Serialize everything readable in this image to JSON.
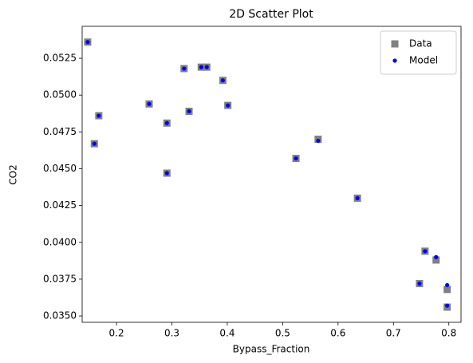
{
  "chart_data": {
    "type": "scatter",
    "title": "2D Scatter Plot",
    "x_label": "Bypass_Fraction",
    "y_label": "CO2",
    "xlim": [
      0.138,
      0.822
    ],
    "ylim": [
      0.03457,
      0.05467
    ],
    "xticks": [
      0.2,
      0.3,
      0.4,
      0.5,
      0.6,
      0.7,
      0.8
    ],
    "yticks": [
      {
        "value": 0.035,
        "label": "0.0350"
      },
      0.0375,
      {
        "value": 0.04,
        "label": "0.0400"
      },
      0.0425,
      {
        "value": 0.045,
        "label": "0.0450"
      },
      0.0475,
      {
        "value": 0.05,
        "label": "0.0500"
      },
      0.0525
    ],
    "legend": "upper right",
    "series": [
      {
        "name": "Data",
        "color": "#808080",
        "marker": "square",
        "x": [
          0.148,
          0.168,
          0.16,
          0.259,
          0.291,
          0.291,
          0.322,
          0.331,
          0.353,
          0.363,
          0.392,
          0.401,
          0.564,
          0.524,
          0.635,
          0.757,
          0.777,
          0.747,
          0.797,
          0.797
        ],
        "y": [
          0.0536,
          0.0486,
          0.0467,
          0.0494,
          0.0481,
          0.0447,
          0.0518,
          0.0489,
          0.0519,
          0.0519,
          0.051,
          0.0493,
          0.047,
          0.0457,
          0.043,
          0.0394,
          0.0388,
          0.0372,
          0.0368,
          0.0356
        ]
      },
      {
        "name": "Model",
        "color": "#0000ff",
        "marker": "circle",
        "x": [
          0.148,
          0.168,
          0.16,
          0.259,
          0.291,
          0.291,
          0.322,
          0.331,
          0.353,
          0.363,
          0.392,
          0.401,
          0.564,
          0.524,
          0.635,
          0.757,
          0.777,
          0.747,
          0.797,
          0.797
        ],
        "y": [
          0.0536,
          0.0486,
          0.0467,
          0.0494,
          0.0481,
          0.0447,
          0.0518,
          0.0489,
          0.0519,
          0.0519,
          0.051,
          0.0493,
          0.0469,
          0.0457,
          0.043,
          0.0394,
          0.039,
          0.0372,
          0.0371,
          0.0357
        ]
      }
    ]
  }
}
